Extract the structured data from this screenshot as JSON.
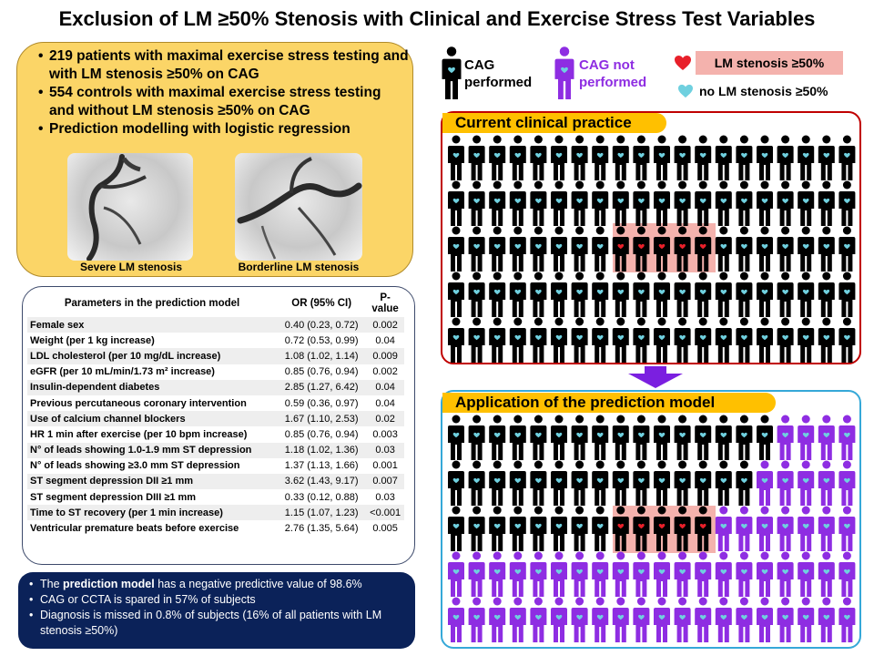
{
  "title": "Exclusion of LM ≥50% Stenosis with Clinical and Exercise Stress Test Variables",
  "summary": {
    "bullets": [
      "219 patients with maximal exercise stress testing and with LM stenosis ≥50% on CAG",
      "554 controls with maximal exercise stress testing and without LM stenosis ≥50% on CAG",
      "Prediction modelling with logistic regression"
    ],
    "images": [
      {
        "caption": "Severe LM stenosis"
      },
      {
        "caption": "Borderline LM stenosis"
      }
    ]
  },
  "table": {
    "headers": {
      "parameter": "Parameters in the prediction model",
      "or": "OR (95% CI)",
      "p": "P-value"
    },
    "rows": [
      {
        "param": "Female sex",
        "or": "0.40 (0.23, 0.72)",
        "p": "0.002"
      },
      {
        "param": "Weight (per 1 kg increase)",
        "or": "0.72 (0.53, 0.99)",
        "p": "0.04"
      },
      {
        "param": "LDL cholesterol (per 10 mg/dL increase)",
        "or": "1.08 (1.02, 1.14)",
        "p": "0.009"
      },
      {
        "param": "eGFR (per 10 mL/min/1.73 m² increase)",
        "or": "0.85 (0.76, 0.94)",
        "p": "0.002"
      },
      {
        "param": "Insulin-dependent diabetes",
        "or": "2.85 (1.27, 6.42)",
        "p": "0.04"
      },
      {
        "param": "Previous percutaneous coronary intervention",
        "or": "0.59 (0.36, 0.97)",
        "p": "0.04"
      },
      {
        "param": "Use of calcium channel blockers",
        "or": "1.67 (1.10, 2.53)",
        "p": "0.02"
      },
      {
        "param": "HR 1 min after exercise (per 10 bpm increase)",
        "or": "0.85 (0.76, 0.94)",
        "p": "0.003"
      },
      {
        "param": "N° of leads showing 1.0-1.9 mm ST depression",
        "or": "1.18 (1.02, 1.36)",
        "p": "0.03"
      },
      {
        "param": "N° of leads showing ≥3.0 mm ST depression",
        "or": "1.37 (1.13, 1.66)",
        "p": "0.001"
      },
      {
        "param": "ST segment depression DII ≥1 mm",
        "or": "3.62 (1.43, 9.17)",
        "p": "0.007"
      },
      {
        "param": "ST segment depression DIII ≥1 mm",
        "or": "0.33 (0.12, 0.88)",
        "p": "0.03"
      },
      {
        "param": "Time to ST recovery (per 1 min increase)",
        "or": "1.15 (1.07, 1.23)",
        "p": "<0.001"
      },
      {
        "param": "Ventricular premature beats before exercise",
        "or": "2.76 (1.35, 5.64)",
        "p": "0.005"
      }
    ]
  },
  "conclusions": {
    "b1_pre": "The ",
    "b1_bold": "prediction model",
    "b1_post": " has a negative predictive value of 98.6%",
    "b2": "CAG or CCTA is spared in 57% of subjects",
    "b3": "Diagnosis is missed in 0.8% of subjects (16% of all patients with LM stenosis ≥50%)"
  },
  "legend": {
    "performed": "CAG performed",
    "not_performed": "CAG not performed",
    "lm_stenosis": "LM stenosis ≥50%",
    "no_lm_stenosis": "no LM stenosis ≥50%"
  },
  "panels": {
    "current": "Current clinical practice",
    "model": "Application of the prediction model"
  },
  "colors": {
    "performed": "#000000",
    "not_performed": "#8e2de2",
    "lm_heart": "#e8202a",
    "no_lm_heart": "#6fd0df",
    "highlight": "#f4b2ad"
  }
}
